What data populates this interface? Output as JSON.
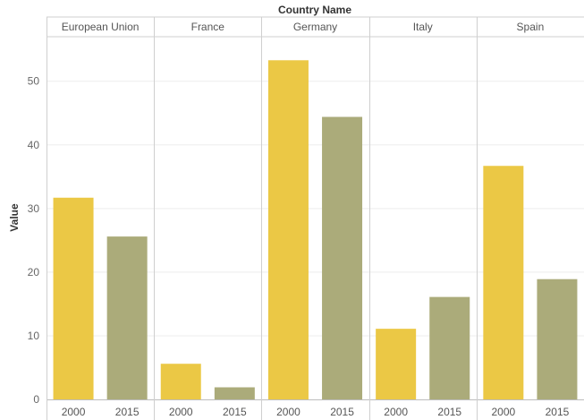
{
  "chart_data": {
    "type": "bar",
    "title": "Country Name",
    "ylabel": "Value",
    "xlabel": "",
    "ylim": [
      0,
      57
    ],
    "yticks": [
      0,
      10,
      20,
      30,
      40,
      50
    ],
    "grid": true,
    "legend": "none",
    "panels": [
      "European Union",
      "France",
      "Germany",
      "Italy",
      "Spain"
    ],
    "categories": [
      "2000",
      "2015"
    ],
    "colors": {
      "2000": "#EBC845",
      "2015": "#ABAB7A"
    },
    "values": [
      [
        31.7,
        25.6
      ],
      [
        5.6,
        1.9
      ],
      [
        53.3,
        44.4
      ],
      [
        11.1,
        16.1
      ],
      [
        36.7,
        18.9
      ]
    ]
  }
}
